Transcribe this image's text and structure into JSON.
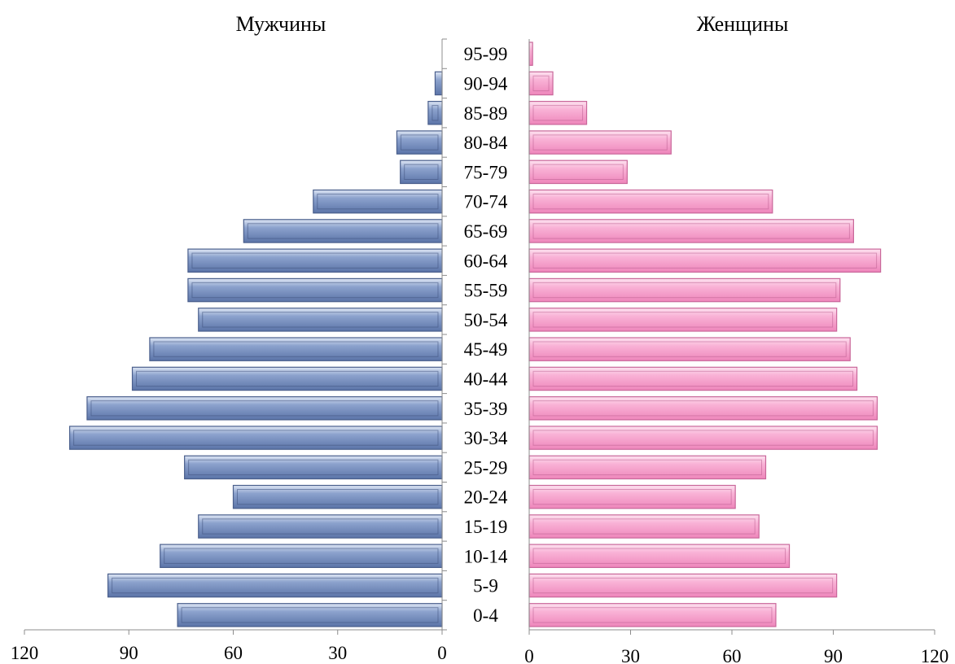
{
  "chart_data": {
    "type": "bar",
    "orientation": "horizontal",
    "subtype": "population-pyramid",
    "categories": [
      "0-4",
      "5-9",
      "10-14",
      "15-19",
      "20-24",
      "25-29",
      "30-34",
      "35-39",
      "40-44",
      "45-49",
      "50-54",
      "55-59",
      "60-64",
      "65-69",
      "70-74",
      "75-79",
      "80-84",
      "85-89",
      "90-94",
      "95-99"
    ],
    "series": [
      {
        "name": "Мужчины",
        "values": [
          76,
          96,
          81,
          70,
          60,
          74,
          107,
          102,
          89,
          84,
          70,
          73,
          73,
          57,
          37,
          12,
          13,
          4,
          2,
          0
        ],
        "color": "#7f96c4"
      },
      {
        "name": "Женщины",
        "values": [
          73,
          91,
          77,
          68,
          61,
          70,
          103,
          103,
          97,
          95,
          91,
          92,
          104,
          96,
          72,
          29,
          42,
          17,
          7,
          1
        ],
        "color": "#f7a8cf"
      }
    ],
    "left_axis": {
      "ticks": [
        120,
        90,
        60,
        30,
        0
      ],
      "range": [
        0,
        120
      ]
    },
    "right_axis": {
      "ticks": [
        0,
        30,
        60,
        90,
        120
      ],
      "range": [
        0,
        120
      ]
    },
    "grid": false
  }
}
